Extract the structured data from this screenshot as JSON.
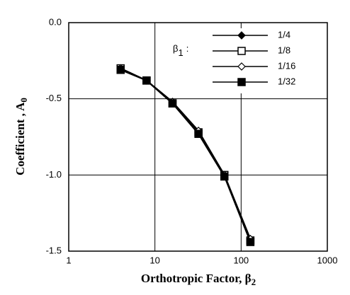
{
  "chart_data": {
    "type": "line",
    "x_label": "Orthotropic Factor,  β",
    "x_label_sub": "2",
    "y_label": "Coefficient , A",
    "y_label_sub": "0",
    "legend_title": "β",
    "legend_title_sub": "1",
    "legend_title_colon": ":",
    "x": [
      4,
      8,
      16,
      32,
      64,
      128
    ],
    "series": [
      {
        "name": "1/4",
        "color": "#000000",
        "marker": "diamond",
        "values": [
          -0.3,
          -0.38,
          -0.52,
          -0.72,
          -1.0,
          -1.43
        ]
      },
      {
        "name": "1/8",
        "color": "#000000",
        "marker": "square-open",
        "values": [
          -0.3,
          -0.38,
          -0.53,
          -0.72,
          -1.0,
          -1.43
        ]
      },
      {
        "name": "1/16",
        "color": "#000000",
        "marker": "diamond-open",
        "values": [
          -0.3,
          -0.38,
          -0.52,
          -0.71,
          -1.0,
          -1.42
        ]
      },
      {
        "name": "1/32",
        "color": "#000000",
        "marker": "square",
        "values": [
          -0.31,
          -0.38,
          -0.53,
          -0.73,
          -1.01,
          -1.44
        ]
      }
    ],
    "xlim": [
      1,
      1000
    ],
    "xticks": [
      1,
      10,
      100,
      1000
    ],
    "xscale": "log",
    "ylim": [
      -1.5,
      0.0
    ],
    "yticks": [
      {
        "value": 0.0,
        "label": "0.0"
      },
      {
        "value": -0.5,
        "label": "-0.5"
      },
      {
        "value": -1.0,
        "label": "-1.0"
      },
      {
        "value": -1.5,
        "label": "-1.5"
      }
    ],
    "grid": true
  }
}
